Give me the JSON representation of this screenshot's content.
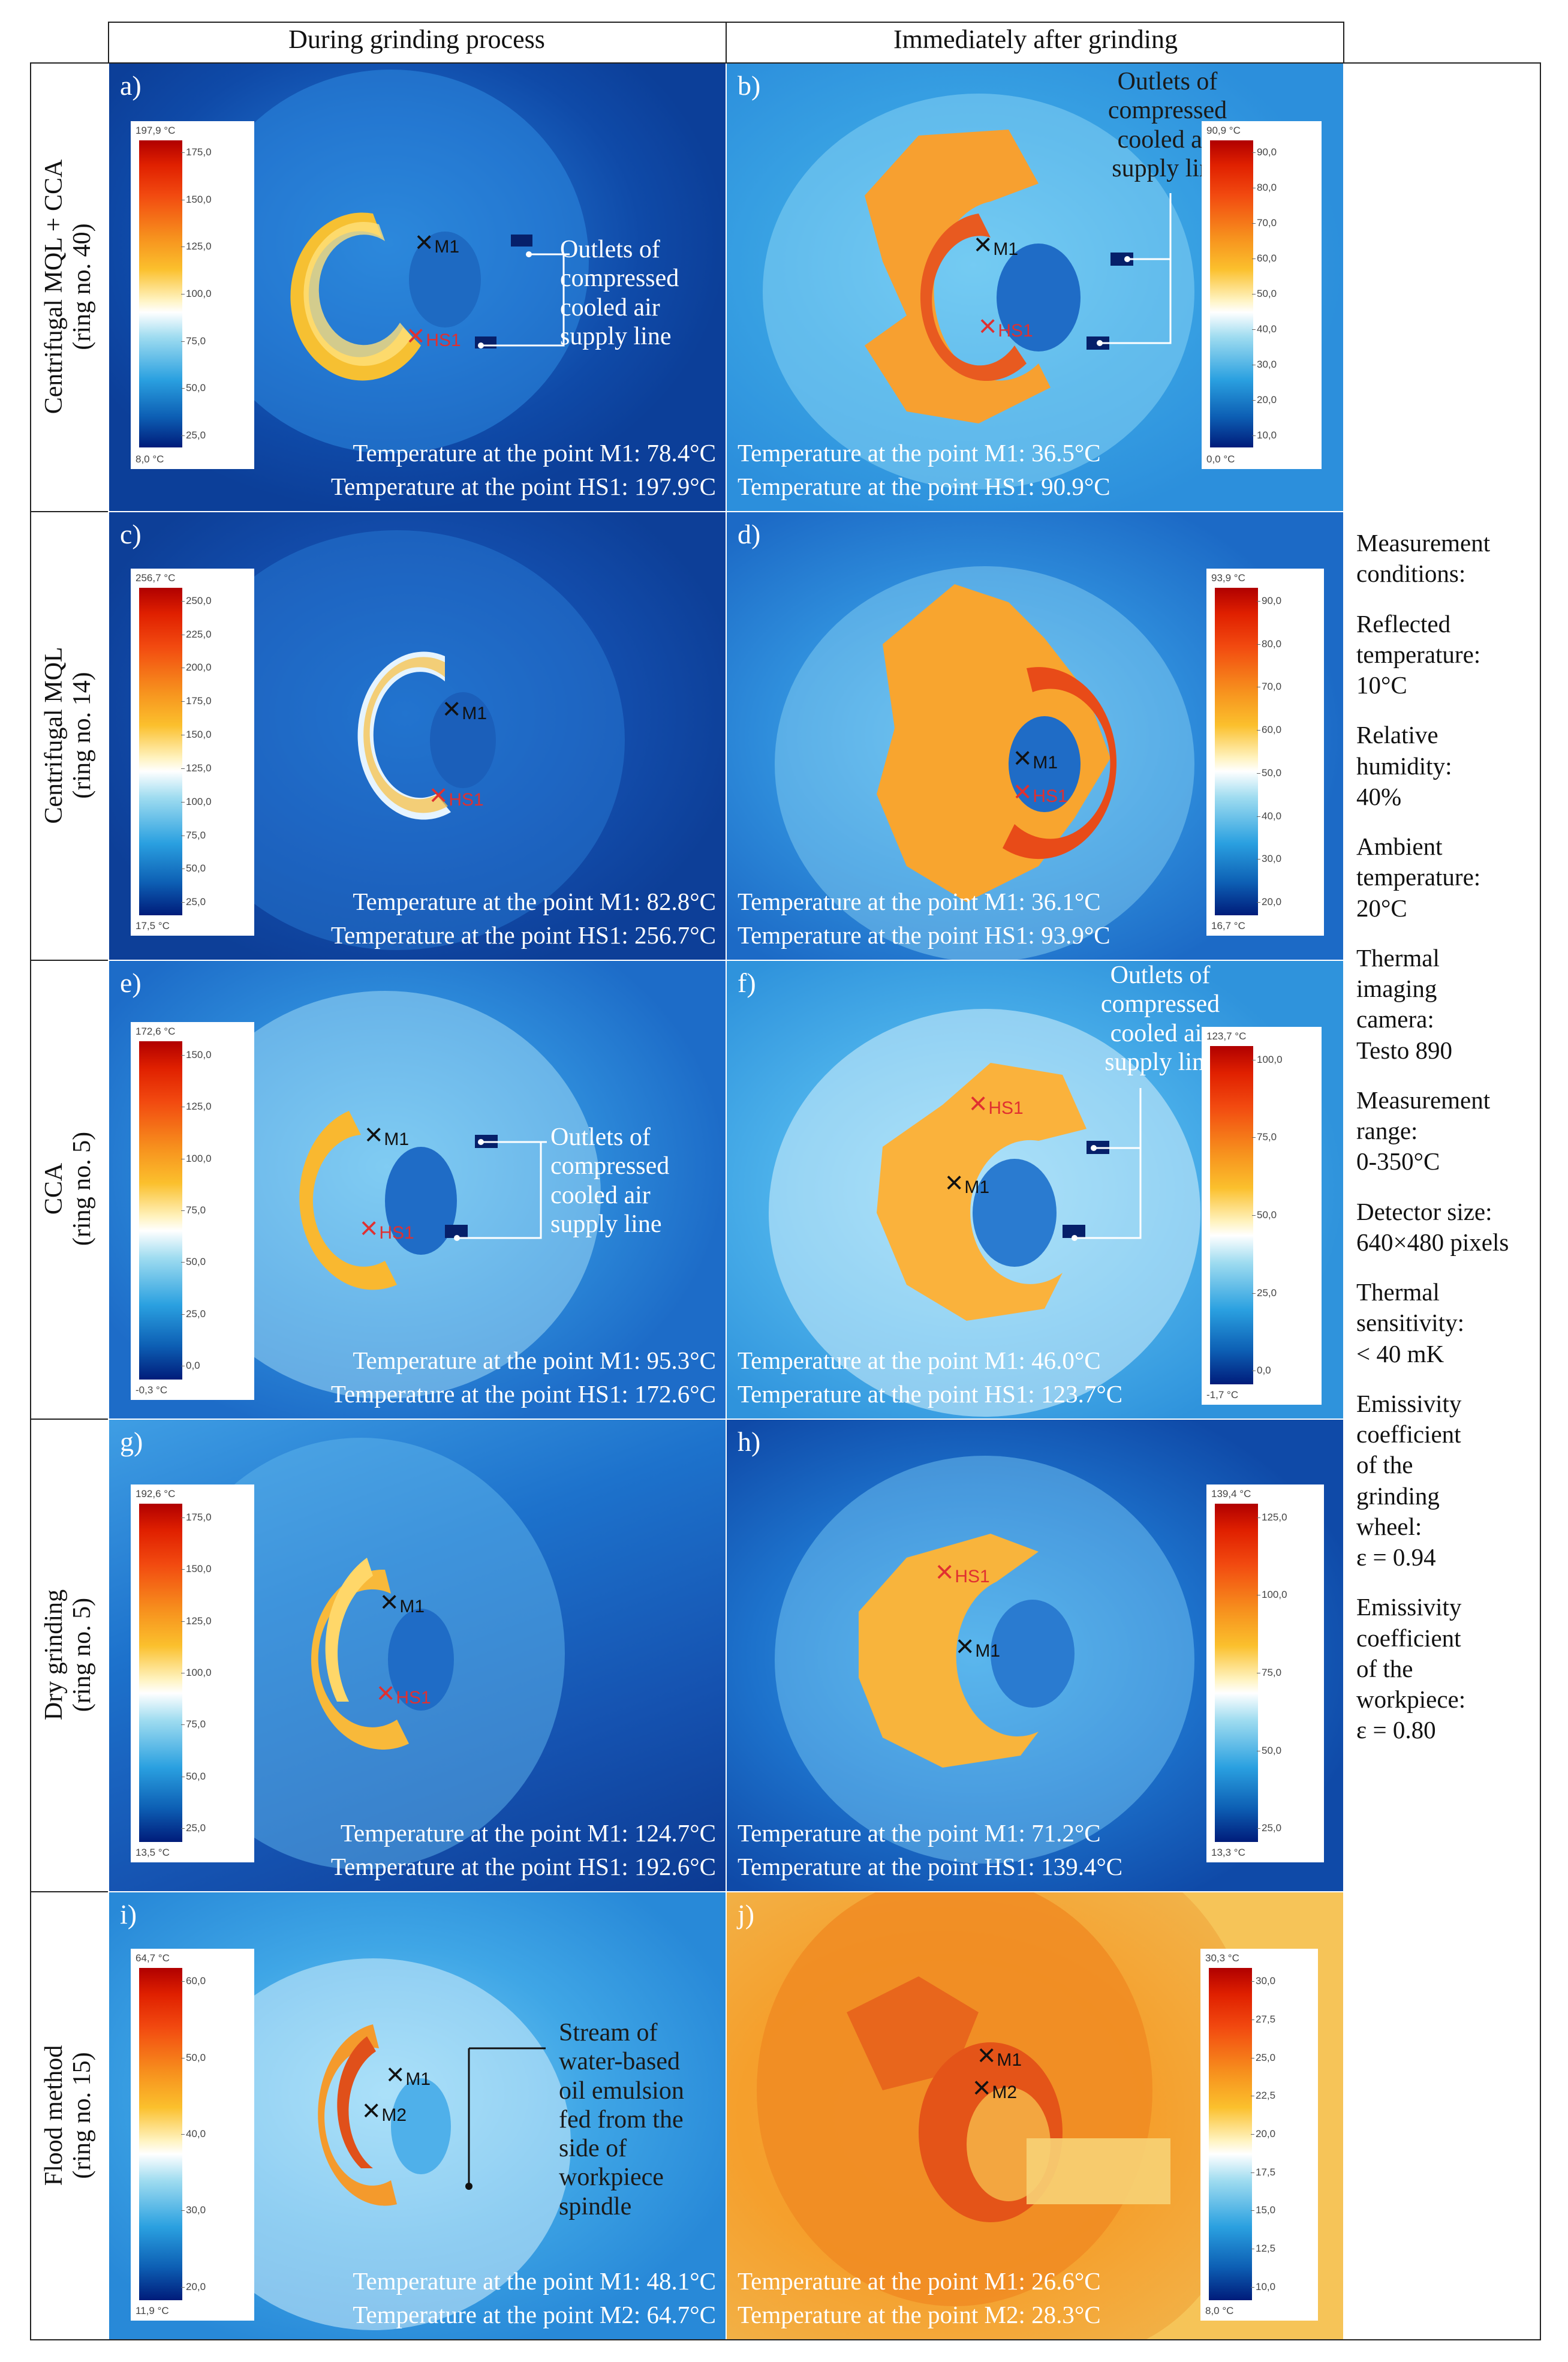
{
  "header": {
    "col1": "During grinding process",
    "col2": "Immediately after grinding"
  },
  "rows": [
    {
      "label_line1": "Centrifugal MQL + CCA",
      "label_line2": "(ring no. 40)"
    },
    {
      "label_line1": "Centrifugal MQL",
      "label_line2": "(ring no. 14)"
    },
    {
      "label_line1": "CCA",
      "label_line2": "(ring no. 5)"
    },
    {
      "label_line1": "Dry grinding",
      "label_line2": "(ring no. 5)"
    },
    {
      "label_line1": "Flood method",
      "label_line2": "(ring no. 15)"
    }
  ],
  "panels": {
    "a": {
      "label": "a)",
      "line1": "Temperature at the point M1: 78.4°C",
      "line2": "Temperature at the point HS1: 197.9°C",
      "scale_max": "197,9 °C",
      "scale_min": "8,0 °C",
      "ticks": [
        "175,0",
        "150,0",
        "125,0",
        "100,0",
        "75,0",
        "50,0",
        "25,0"
      ],
      "m1": "M1",
      "hs1": "HS1",
      "annotation": "Outlets of\ncompressed\ncooled air\nsupply line"
    },
    "b": {
      "label": "b)",
      "line1": "Temperature at the point M1: 36.5°C",
      "line2": "Temperature at the point HS1: 90.9°C",
      "scale_max": "90,9 °C",
      "scale_min": "0,0 °C",
      "ticks": [
        "90,0",
        "80,0",
        "70,0",
        "60,0",
        "50,0",
        "40,0",
        "30,0",
        "20,0",
        "10,0"
      ],
      "m1": "M1",
      "hs1": "HS1",
      "annotation": "Outlets of\ncompressed\ncooled air\nsupply line"
    },
    "c": {
      "label": "c)",
      "line1": "Temperature at the point M1: 82.8°C",
      "line2": "Temperature at the point HS1: 256.7°C",
      "scale_max": "256,7 °C",
      "scale_min": "17,5 °C",
      "ticks": [
        "250,0",
        "225,0",
        "200,0",
        "175,0",
        "150,0",
        "125,0",
        "100,0",
        "75,0",
        "50,0",
        "25,0"
      ],
      "m1": "M1",
      "hs1": "HS1"
    },
    "d": {
      "label": "d)",
      "line1": "Temperature at the point M1: 36.1°C",
      "line2": "Temperature at the point HS1: 93.9°C",
      "scale_max": "93,9 °C",
      "scale_min": "16,7 °C",
      "ticks": [
        "90,0",
        "80,0",
        "70,0",
        "60,0",
        "50,0",
        "40,0",
        "30,0",
        "20,0"
      ],
      "m1": "M1",
      "hs1": "HS1"
    },
    "e": {
      "label": "e)",
      "line1": "Temperature at the point M1: 95.3°C",
      "line2": "Temperature at the point HS1: 172.6°C",
      "scale_max": "172,6 °C",
      "scale_min": "-0,3 °C",
      "ticks": [
        "150,0",
        "125,0",
        "100,0",
        "75,0",
        "50,0",
        "25,0",
        "0,0"
      ],
      "m1": "M1",
      "hs1": "HS1",
      "annotation": "Outlets of\ncompressed\ncooled air\nsupply line"
    },
    "f": {
      "label": "f)",
      "line1": "Temperature at the point M1: 46.0°C",
      "line2": "Temperature at the point HS1: 123.7°C",
      "scale_max": "123,7 °C",
      "scale_min": "-1,7 °C",
      "ticks": [
        "100,0",
        "75,0",
        "50,0",
        "25,0",
        "0,0"
      ],
      "m1": "M1",
      "hs1": "HS1",
      "annotation": "Outlets of\ncompressed\ncooled air\nsupply line"
    },
    "g": {
      "label": "g)",
      "line1": "Temperature at the point M1: 124.7°C",
      "line2": "Temperature at the point HS1: 192.6°C",
      "scale_max": "192,6 °C",
      "scale_min": "13,5 °C",
      "ticks": [
        "175,0",
        "150,0",
        "125,0",
        "100,0",
        "75,0",
        "50,0",
        "25,0"
      ],
      "m1": "M1",
      "hs1": "HS1"
    },
    "h": {
      "label": "h)",
      "line1": "Temperature at the point M1: 71.2°C",
      "line2": "Temperature at the point HS1: 139.4°C",
      "scale_max": "139,4 °C",
      "scale_min": "13,3 °C",
      "ticks": [
        "125,0",
        "100,0",
        "75,0",
        "50,0",
        "25,0"
      ],
      "m1": "M1",
      "hs1": "HS1"
    },
    "i": {
      "label": "i)",
      "line1": "Temperature at the point M1: 48.1°C",
      "line2": "Temperature at the point M2: 64.7°C",
      "scale_max": "64,7 °C",
      "scale_min": "11,9 °C",
      "ticks": [
        "60,0",
        "50,0",
        "40,0",
        "30,0",
        "20,0"
      ],
      "m1": "M1",
      "m2": "M2",
      "annotation": "Stream of\nwater-based\noil emulsion\nfed from the\nside of\nworkpiece\nspindle"
    },
    "j": {
      "label": "j)",
      "line1": "Temperature at the point M1: 26.6°C",
      "line2": "Temperature at the point M2: 28.3°C",
      "scale_max": "30,3 °C",
      "scale_min": "8,0 °C",
      "ticks": [
        "30,0",
        "27,5",
        "25,0",
        "22,5",
        "20,0",
        "17,5",
        "15,0",
        "12,5",
        "10,0"
      ],
      "m1": "M1",
      "m2": "M2"
    }
  },
  "conditions": [
    "Measurement\nconditions:",
    "Reflected\ntemperature:\n10°C",
    "Relative\nhumidity:\n40%",
    "Ambient\ntemperature:\n20°C",
    "Thermal\nimaging\ncamera:\nTesto 890",
    "Measurement\nrange:\n0-350°C",
    "Detector size:\n640×480 pixels",
    "Thermal\nsensitivity:\n< 40 mK",
    "Emissivity\ncoefficient\nof the\ngrinding\nwheel:\nε = 0.94",
    "Emissivity\ncoefficient\nof the\nworkpiece:\nε = 0.80"
  ]
}
